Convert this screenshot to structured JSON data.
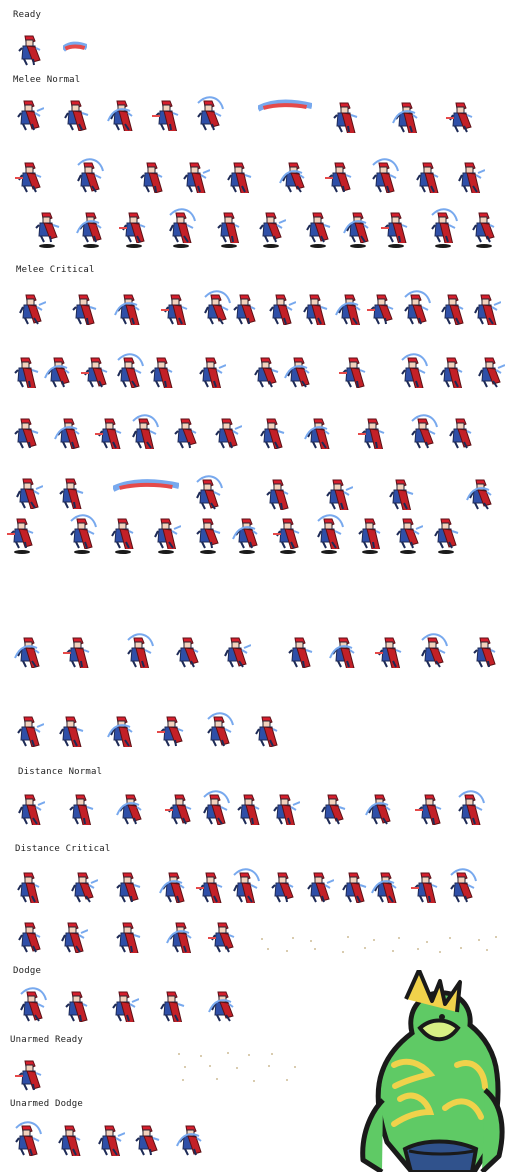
{
  "sections": {
    "ready": "Ready",
    "melee_normal": "Melee Normal",
    "melee_critical": "Melee Critical",
    "distance_normal": "Distance Normal",
    "distance_critical": "Distance Critical",
    "dodge": "Dodge",
    "unarmed_ready": "Unarmed Ready",
    "unarmed_dodge": "Unarmed Dodge"
  },
  "colors": {
    "background": "#ffffff",
    "hair_red": "#d61f2d",
    "cape_red": "#c32027",
    "armor_blue": "#2f4fa7",
    "light_blue": "#78a9ee",
    "dark_blue": "#1d2a56",
    "shadow": "#1a1a1a",
    "sprite_accent": "#e54a4a",
    "character_green": "#5fca65",
    "character_dark": "#2d4d2b",
    "character_yellow": "#f0d24b"
  },
  "icons": {
    "sprite": "sprite-figure-icon",
    "sprite_effect": "effect-slash-icon",
    "shadow": "ground-shadow-icon",
    "large_character": "large-character-art-icon"
  }
}
